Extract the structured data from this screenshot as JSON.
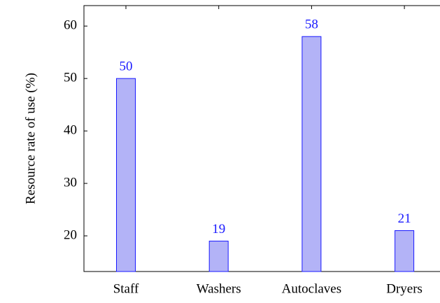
{
  "chart_data": {
    "type": "bar",
    "y_label": "Resource rate of use (%)",
    "categories": [
      "Staff",
      "Washers",
      "Autoclaves",
      "Dryers"
    ],
    "values": [
      50,
      19,
      58,
      21
    ],
    "color": "#b3b3f7",
    "edge_color": "#1a1aff",
    "label_color": "#1a1aff",
    "ylim": [
      13.2,
      63.9
    ],
    "yticks": [
      20,
      30,
      40,
      50,
      60
    ]
  }
}
